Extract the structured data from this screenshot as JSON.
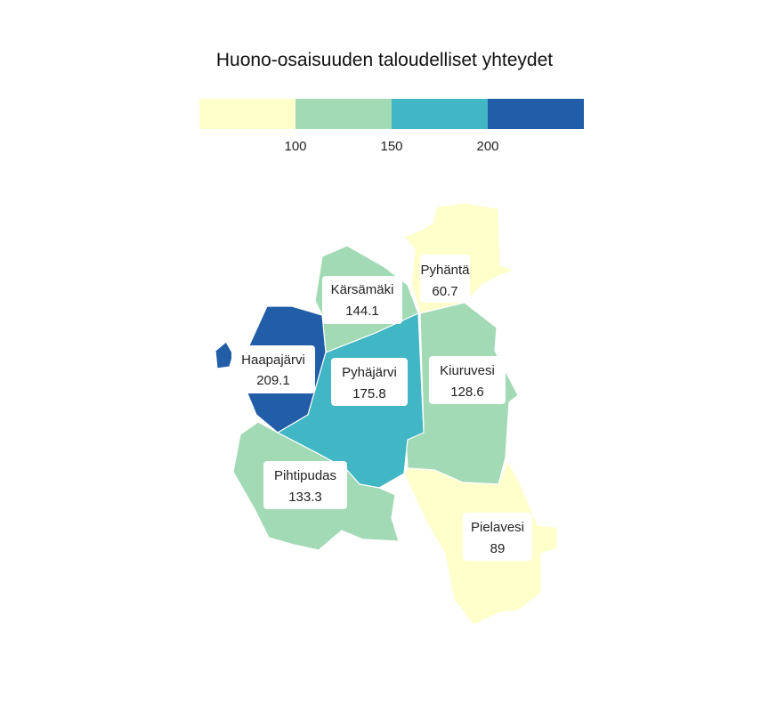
{
  "title": "Huono-osaisuuden taloudelliset yhteydet",
  "legend": {
    "ticks": [
      "100",
      "150",
      "200"
    ],
    "bins": [
      {
        "color": "#ffffcc"
      },
      {
        "color": "#a1dab4"
      },
      {
        "color": "#41b6c4"
      },
      {
        "color": "#225ea8"
      }
    ]
  },
  "municipalities": [
    {
      "name": "Pyhäntä",
      "value": "60.7",
      "color": "#ffffcc"
    },
    {
      "name": "Kärsämäki",
      "value": "144.1",
      "color": "#a1dab4"
    },
    {
      "name": "Haapajärvi",
      "value": "209.1",
      "color": "#225ea8"
    },
    {
      "name": "Pyhäjärvi",
      "value": "175.8",
      "color": "#41b6c4"
    },
    {
      "name": "Kiuruvesi",
      "value": "128.6",
      "color": "#a1dab4"
    },
    {
      "name": "Pihtipudas",
      "value": "133.3",
      "color": "#a1dab4"
    },
    {
      "name": "Pielavesi",
      "value": "89",
      "color": "#ffffcc"
    }
  ]
}
